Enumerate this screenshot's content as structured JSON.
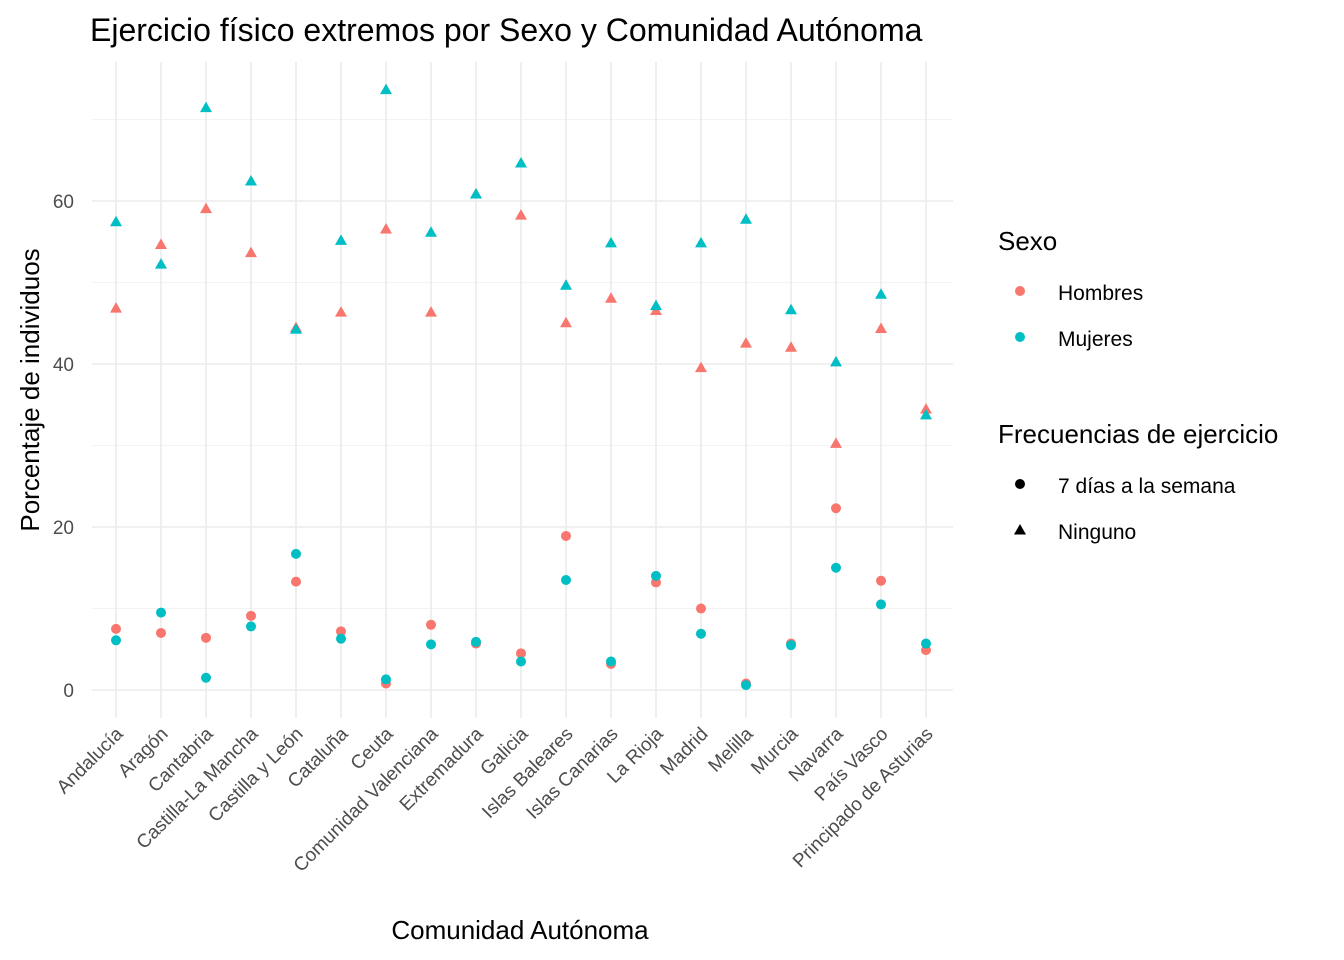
{
  "chart_data": {
    "type": "scatter",
    "title": "Ejercicio físico extremos por Sexo y Comunidad Autónoma",
    "xlabel": "Comunidad Autónoma",
    "ylabel": "Porcentaje de individuos",
    "ylim": [
      -3,
      77
    ],
    "y_ticks": [
      0,
      20,
      40,
      60
    ],
    "grid": true,
    "categories": [
      "Andalucía",
      "Aragón",
      "Cantabria",
      "Castilla-La Mancha",
      "Castilla y León",
      "Cataluña",
      "Ceuta",
      "Comunidad Valenciana",
      "Extremadura",
      "Galicia",
      "Islas Baleares",
      "Islas Canarias",
      "La Rioja",
      "Madrid",
      "Melilla",
      "Murcia",
      "Navarra",
      "País Vasco",
      "Principado de Asturias"
    ],
    "legend": {
      "placement": "right",
      "color_title": "Sexo",
      "color_items": [
        {
          "label": "Hombres",
          "color": "#F8766D"
        },
        {
          "label": "Mujeres",
          "color": "#00BFC4"
        }
      ],
      "shape_title": "Frecuencias de ejercicio",
      "shape_items": [
        {
          "label": "7 días a la semana",
          "shape": "circle"
        },
        {
          "label": "Ninguno",
          "shape": "triangle"
        }
      ]
    },
    "series": [
      {
        "sexo": "Hombres",
        "frecuencia": "Ninguno",
        "color": "#F8766D",
        "shape": "triangle",
        "values": [
          46.8,
          54.6,
          59.0,
          53.6,
          44.4,
          46.3,
          56.5,
          46.3,
          60.8,
          58.2,
          45.0,
          48.0,
          46.5,
          39.5,
          42.5,
          42.0,
          30.2,
          44.3,
          34.4
        ]
      },
      {
        "sexo": "Mujeres",
        "frecuencia": "Ninguno",
        "color": "#00BFC4",
        "shape": "triangle",
        "values": [
          57.4,
          52.2,
          71.4,
          62.4,
          44.2,
          55.1,
          73.6,
          56.1,
          60.8,
          64.6,
          49.6,
          54.8,
          47.1,
          54.8,
          57.7,
          46.6,
          40.2,
          48.5,
          33.7
        ]
      },
      {
        "sexo": "Hombres",
        "frecuencia": "7 días a la semana",
        "color": "#F8766D",
        "shape": "circle",
        "values": [
          7.5,
          7.0,
          6.4,
          9.1,
          13.3,
          7.2,
          0.8,
          8.0,
          5.7,
          4.5,
          18.9,
          3.2,
          13.2,
          10.0,
          0.8,
          5.7,
          22.3,
          13.4,
          4.9
        ]
      },
      {
        "sexo": "Mujeres",
        "frecuencia": "7 días a la semana",
        "color": "#00BFC4",
        "shape": "circle",
        "values": [
          6.1,
          9.5,
          1.5,
          7.8,
          16.7,
          6.3,
          1.3,
          5.6,
          5.9,
          3.5,
          13.5,
          3.5,
          14.0,
          6.9,
          0.6,
          5.5,
          15.0,
          10.5,
          5.7
        ]
      }
    ]
  }
}
